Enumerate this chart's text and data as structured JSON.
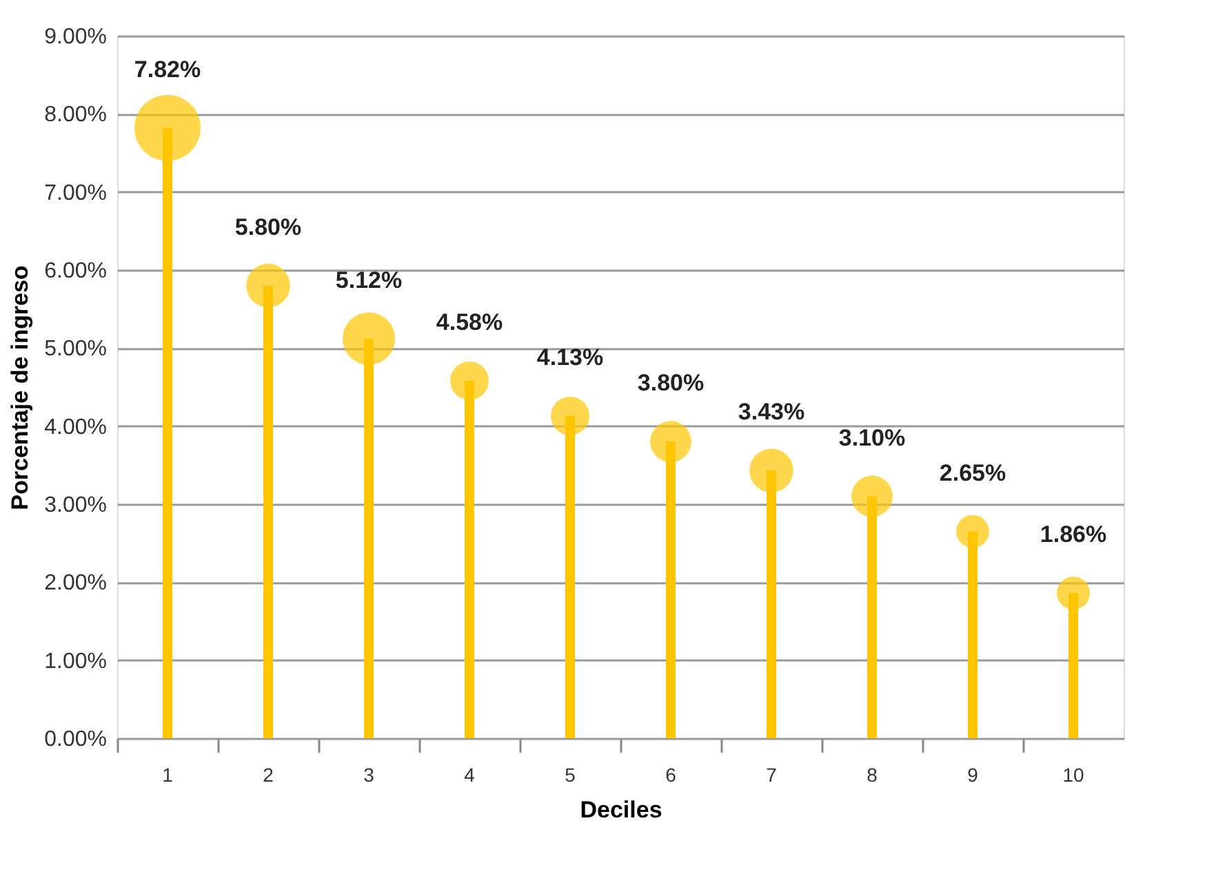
{
  "chart_data": {
    "type": "lollipop",
    "xlabel": "Deciles",
    "ylabel": "Porcentaje de ingreso",
    "categories": [
      "1",
      "2",
      "3",
      "4",
      "5",
      "6",
      "7",
      "8",
      "9",
      "10"
    ],
    "values": [
      7.82,
      5.8,
      5.12,
      4.58,
      4.13,
      3.8,
      3.43,
      3.1,
      2.65,
      1.86
    ],
    "sizes": [
      1,
      0.44,
      0.63,
      0.34,
      0.34,
      0.39,
      0.44,
      0.39,
      0.25,
      0.25
    ],
    "value_labels": [
      "7.82%",
      "5.80%",
      "5.12%",
      "4.58%",
      "4.13%",
      "3.80%",
      "3.43%",
      "3.10%",
      "2.65%",
      "1.86%"
    ],
    "color": "#ffc600",
    "ylim": [
      0,
      9
    ],
    "yticks": [
      {
        "value": 0,
        "label": "0.00%"
      },
      {
        "value": 1,
        "label": "1.00%"
      },
      {
        "value": 2,
        "label": "2.00%"
      },
      {
        "value": 3,
        "label": "3.00%"
      },
      {
        "value": 4,
        "label": "4.00%"
      },
      {
        "value": 5,
        "label": "5.00%"
      },
      {
        "value": 6,
        "label": "6.00%"
      },
      {
        "value": 7,
        "label": "7.00%"
      },
      {
        "value": 8,
        "label": "8.00%"
      },
      {
        "value": 9,
        "label": "9.00%"
      }
    ],
    "grid": "y",
    "marker": "circle"
  }
}
